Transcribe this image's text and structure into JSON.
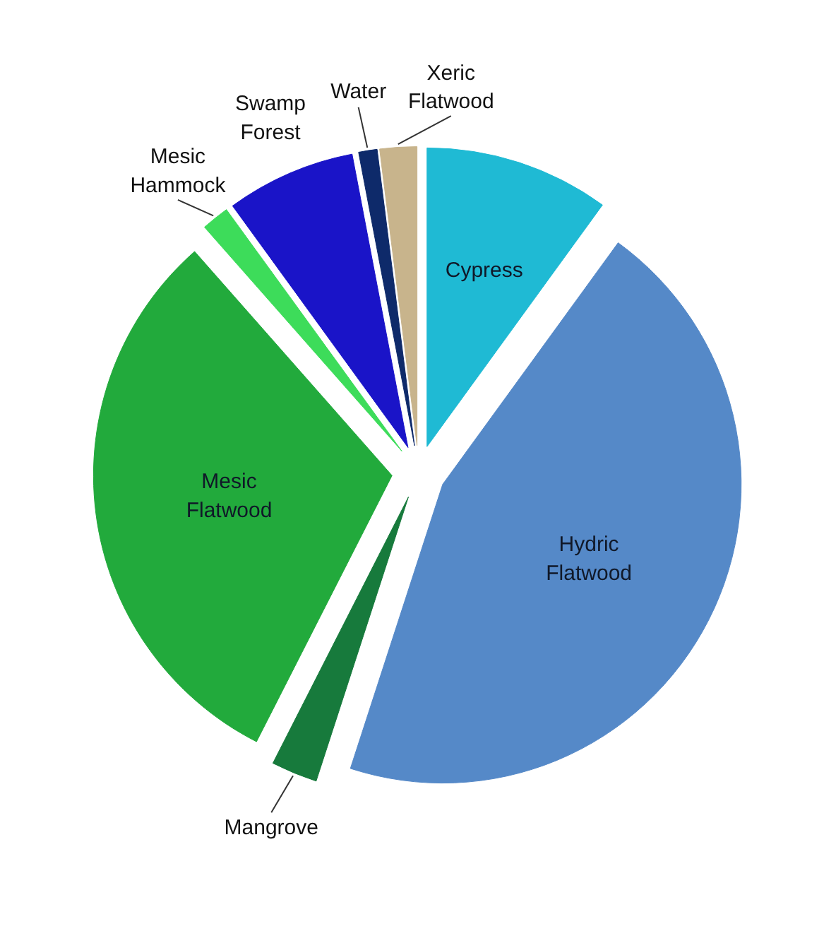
{
  "chart_data": {
    "type": "pie",
    "categories": [
      "Cypress",
      "Hydric Flatwood",
      "Mangrove",
      "Mesic Flatwood",
      "Mesic Hammock",
      "Swamp Forest",
      "Water",
      "Xeric Flatwood"
    ],
    "values": [
      10,
      45,
      2.5,
      31,
      1.5,
      7,
      1,
      2
    ],
    "colors": [
      "#1fbad4",
      "#5589c8",
      "#177a3c",
      "#22aa3c",
      "#3ddc5a",
      "#1a14c8",
      "#0e2a6a",
      "#c8b48c"
    ]
  }
}
